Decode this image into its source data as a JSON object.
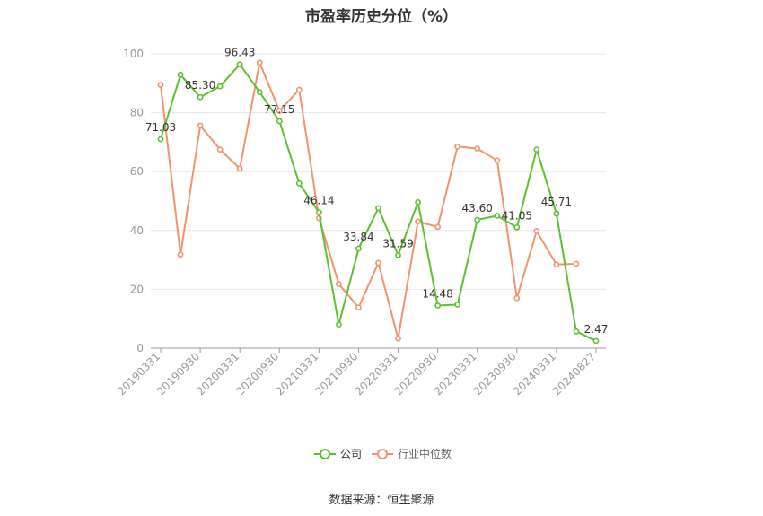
{
  "title": "市盈率历史分位（%）",
  "source": "数据来源：恒生聚源",
  "colors": {
    "company": "#5cc12e",
    "industry": "#f4926c",
    "grid": "#e6e6e6",
    "axis": "#999999"
  },
  "chart_data": {
    "type": "line",
    "title": "市盈率历史分位（%）",
    "ylim": [
      0,
      100
    ],
    "yticks": [
      0,
      20,
      40,
      60,
      80,
      100
    ],
    "grid": true,
    "legend": "bottom-center",
    "x": [
      "20190331",
      "20190630",
      "20190930",
      "20191231",
      "20200331",
      "20200630",
      "20200930",
      "20201231",
      "20210331",
      "20210630",
      "20210930",
      "20211231",
      "20220331",
      "20220630",
      "20220930",
      "20221231",
      "20230331",
      "20230630",
      "20230930",
      "20231231",
      "20240331",
      "20240630",
      "20240827"
    ],
    "xticks": [
      "20190331",
      "20190930",
      "20200331",
      "20200930",
      "20210331",
      "20210930",
      "20220331",
      "20220930",
      "20230331",
      "20230930",
      "20240331",
      "20240827"
    ],
    "series": [
      {
        "name": "公司",
        "color": "#5cc12e",
        "values": [
          71.03,
          92.9,
          85.3,
          89.0,
          96.43,
          87.0,
          77.15,
          56.0,
          46.14,
          8.0,
          33.84,
          47.6,
          31.59,
          49.6,
          14.48,
          14.8,
          43.6,
          45.0,
          41.05,
          67.5,
          45.71,
          5.7,
          2.47
        ],
        "labels": {
          "0": "71.03",
          "2": "85.30",
          "4": "96.43",
          "6": "77.15",
          "8": "46.14",
          "10": "33.84",
          "12": "31.59",
          "14": "14.48",
          "16": "43.60",
          "18": "41.05",
          "20": "45.71",
          "22": "2.47"
        }
      },
      {
        "name": "行业中位数",
        "color": "#f4926c",
        "values": [
          89.5,
          31.8,
          75.6,
          67.5,
          61.0,
          97.0,
          80.6,
          87.8,
          44.2,
          21.8,
          13.8,
          29.0,
          3.3,
          43.0,
          41.2,
          68.5,
          67.8,
          63.8,
          17.0,
          39.8,
          28.4,
          28.7,
          null
        ]
      }
    ]
  }
}
